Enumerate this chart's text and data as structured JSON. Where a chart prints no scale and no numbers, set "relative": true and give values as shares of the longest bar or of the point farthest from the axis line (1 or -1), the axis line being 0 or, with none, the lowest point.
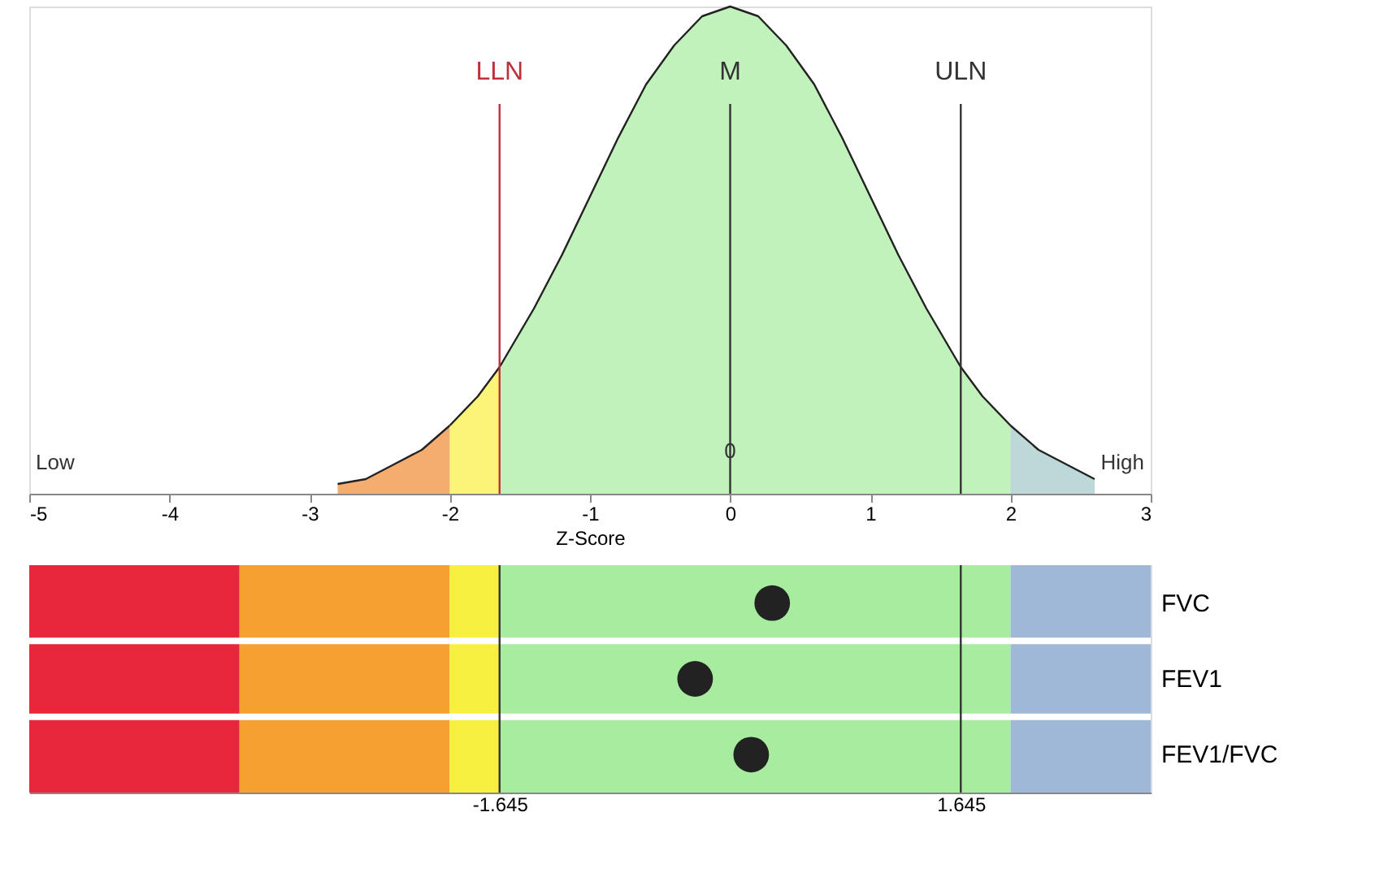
{
  "chart_data": [
    {
      "type": "area",
      "relative": true,
      "xlabel": "Z-Score",
      "xlim": [
        -5,
        3
      ],
      "xticks": [
        -5,
        -4,
        -3,
        -2,
        -1,
        0,
        1,
        2,
        3
      ],
      "grid": false,
      "series": [
        {
          "color": "#f08a30",
          "x": [
            -2.8,
            -2.6,
            -2.4,
            -2.2,
            -2.0
          ],
          "values": [
            0.02,
            0.03,
            0.06,
            0.09,
            0.14
          ]
        },
        {
          "color": "#f8f040",
          "x": [
            -2.0,
            -1.8,
            -1.645
          ],
          "values": [
            0.14,
            0.2,
            0.26
          ]
        },
        {
          "color": "#a8eca0",
          "x": [
            -1.645,
            -1.4,
            -1.2,
            -1.0,
            -0.8,
            -0.6,
            -0.4,
            -0.2,
            0,
            0.2,
            0.4,
            0.6,
            0.8,
            1.0,
            1.2,
            1.4,
            1.645,
            1.8,
            2.0
          ],
          "values": [
            0.26,
            0.38,
            0.49,
            0.61,
            0.73,
            0.84,
            0.92,
            0.98,
            1,
            0.98,
            0.92,
            0.84,
            0.73,
            0.61,
            0.49,
            0.38,
            0.26,
            0.2,
            0.14
          ]
        },
        {
          "color": "#a0c8c8",
          "x": [
            2.0,
            2.2,
            2.4,
            2.6
          ],
          "values": [
            0.14,
            0.09,
            0.06,
            0.03
          ]
        }
      ],
      "ref_lines": [
        {
          "axis": "x",
          "value": -1.645,
          "label": "LLN",
          "color": "#c0303a"
        },
        {
          "axis": "x",
          "value": 0,
          "label": "M",
          "color": "#333333"
        },
        {
          "axis": "x",
          "value": 1.645,
          "label": "ULN",
          "color": "#333333"
        }
      ],
      "annotations": [
        "Low",
        {
          "text": "0",
          "x": 0,
          "y": 0.05
        },
        "High"
      ]
    },
    {
      "type": "scatter",
      "orientation": "horizontal",
      "categories": [
        "FVC",
        "FEV1",
        "FEV1/FVC"
      ],
      "values": [
        0.3,
        -0.25,
        0.15
      ],
      "color": "#222222",
      "marker": "circle",
      "xlim": [
        -5,
        3
      ],
      "xticks": [
        {
          "value": -1.645,
          "label": "-1.645"
        },
        {
          "value": 1.645,
          "label": "1.645"
        }
      ],
      "grid": false,
      "bands": [
        {
          "axis": "x",
          "from": -5,
          "to": -3.5,
          "color": "#e8283a"
        },
        {
          "axis": "x",
          "from": -3.5,
          "to": -2,
          "color": "#f5a030"
        },
        {
          "axis": "x",
          "from": -2,
          "to": -1.645,
          "color": "#f8f040"
        },
        {
          "axis": "x",
          "from": -1.645,
          "to": 2,
          "color": "#a8eca0"
        },
        {
          "axis": "x",
          "from": 2,
          "to": 3,
          "color": "#a0b8d8"
        }
      ],
      "ref_lines": [
        {
          "axis": "x",
          "value": -1.645,
          "color": "#333333"
        },
        {
          "axis": "x",
          "value": 1.645,
          "color": "#333333"
        }
      ]
    }
  ]
}
